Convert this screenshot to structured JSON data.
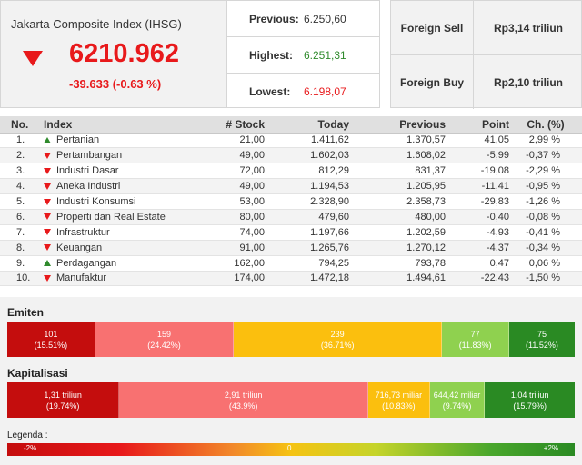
{
  "index": {
    "name": "Jakarta Composite Index (IHSG)",
    "value": "6210.962",
    "change": "-39.633 (-0.63 %)",
    "direction_icon": "triangle-down-icon",
    "color": "#e8191b"
  },
  "stats": {
    "previous_label": "Previous:",
    "previous_value": "6.250,60",
    "highest_label": "Highest:",
    "highest_value": "6.251,31",
    "lowest_label": "Lowest:",
    "lowest_value": "6.198,07"
  },
  "foreign": {
    "sell_label": "Foreign Sell",
    "sell_value": "Rp3,14 triliun",
    "buy_label": "Foreign Buy",
    "buy_value": "Rp2,10 triliun"
  },
  "table": {
    "headers": {
      "no": "No.",
      "index": "Index",
      "stock": "# Stock",
      "today": "Today",
      "previous": "Previous",
      "point": "Point",
      "change": "Ch. (%)"
    },
    "rows": [
      {
        "no": "1.",
        "dir": "up",
        "index": "Pertanian",
        "stock": "21,00",
        "today": "1.411,62",
        "previous": "1.370,57",
        "point": "41,05",
        "change": "2,99 %"
      },
      {
        "no": "2.",
        "dir": "down",
        "index": "Pertambangan",
        "stock": "49,00",
        "today": "1.602,03",
        "previous": "1.608,02",
        "point": "-5,99",
        "change": "-0,37 %"
      },
      {
        "no": "3.",
        "dir": "down",
        "index": "Industri Dasar",
        "stock": "72,00",
        "today": "812,29",
        "previous": "831,37",
        "point": "-19,08",
        "change": "-2,29 %"
      },
      {
        "no": "4.",
        "dir": "down",
        "index": "Aneka Industri",
        "stock": "49,00",
        "today": "1.194,53",
        "previous": "1.205,95",
        "point": "-11,41",
        "change": "-0,95 %"
      },
      {
        "no": "5.",
        "dir": "down",
        "index": "Industri Konsumsi",
        "stock": "53,00",
        "today": "2.328,90",
        "previous": "2.358,73",
        "point": "-29,83",
        "change": "-1,26 %"
      },
      {
        "no": "6.",
        "dir": "down",
        "index": "Properti dan Real Estate",
        "stock": "80,00",
        "today": "479,60",
        "previous": "480,00",
        "point": "-0,40",
        "change": "-0,08 %"
      },
      {
        "no": "7.",
        "dir": "down",
        "index": "Infrastruktur",
        "stock": "74,00",
        "today": "1.197,66",
        "previous": "1.202,59",
        "point": "-4,93",
        "change": "-0,41 %"
      },
      {
        "no": "8.",
        "dir": "down",
        "index": "Keuangan",
        "stock": "91,00",
        "today": "1.265,76",
        "previous": "1.270,12",
        "point": "-4,37",
        "change": "-0,34 %"
      },
      {
        "no": "9.",
        "dir": "up",
        "index": "Perdagangan",
        "stock": "162,00",
        "today": "794,25",
        "previous": "793,78",
        "point": "0,47",
        "change": "0,06 %"
      },
      {
        "no": "10.",
        "dir": "down",
        "index": "Manufaktur",
        "stock": "174,00",
        "today": "1.472,18",
        "previous": "1.494,61",
        "point": "-22,43",
        "change": "-1,50 %"
      }
    ]
  },
  "emiten": {
    "title": "Emiten",
    "segments": [
      {
        "value": "101",
        "pct": "(15.51%)",
        "share": 15.51,
        "color": "#c40d0d"
      },
      {
        "value": "159",
        "pct": "(24.42%)",
        "share": 24.42,
        "color": "#f87171"
      },
      {
        "value": "239",
        "pct": "(36.71%)",
        "share": 36.71,
        "color": "#fbbf0e"
      },
      {
        "value": "77",
        "pct": "(11.83%)",
        "share": 11.83,
        "color": "#8fd14f"
      },
      {
        "value": "75",
        "pct": "(11.52%)",
        "share": 11.52,
        "color": "#2a8a23"
      }
    ]
  },
  "kapitalisasi": {
    "title": "Kapitalisasi",
    "segments": [
      {
        "value": "1,31 triliun",
        "pct": "(19.74%)",
        "share": 19.74,
        "color": "#c40d0d"
      },
      {
        "value": "2,91 triliun",
        "pct": "(43.9%)",
        "share": 43.9,
        "color": "#f87171"
      },
      {
        "value": "716,73 miliar",
        "pct": "(10.83%)",
        "share": 10.83,
        "color": "#fbbf0e"
      },
      {
        "value": "644,42 miliar",
        "pct": "(9.74%)",
        "share": 9.74,
        "color": "#8fd14f"
      },
      {
        "value": "1,04 triliun",
        "pct": "(15.79%)",
        "share": 15.79,
        "color": "#2a8a23"
      }
    ]
  },
  "legend": {
    "title": "Legenda :",
    "min": "-2%",
    "mid": "0",
    "max": "+2%"
  }
}
